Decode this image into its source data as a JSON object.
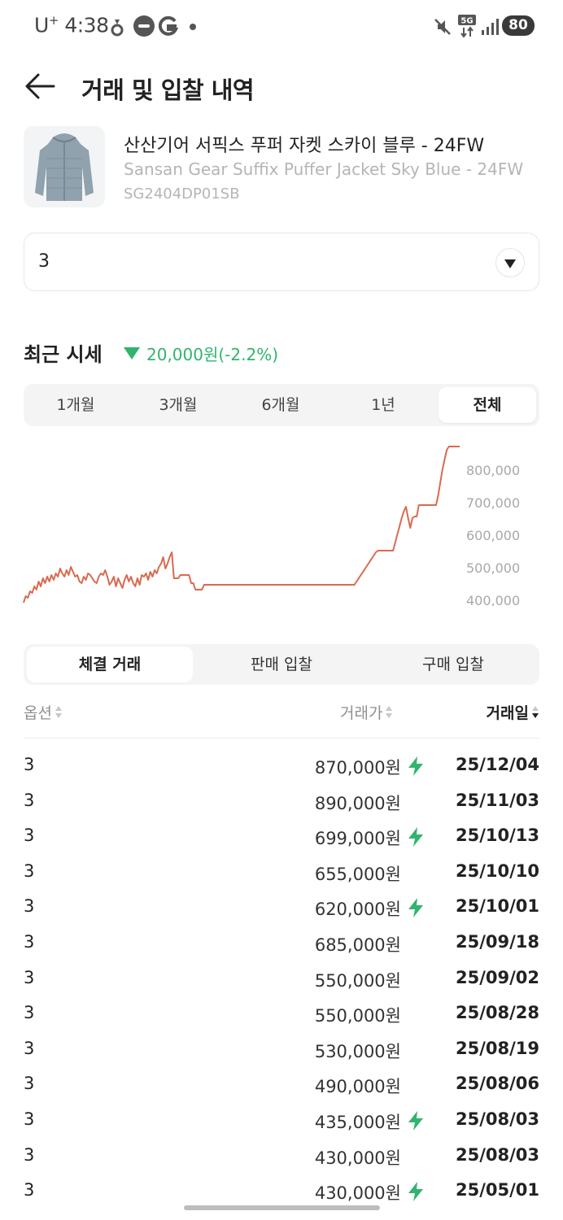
{
  "status_bar": {
    "carrier": "U",
    "carrier_plus": "+",
    "time": "4:38",
    "icons": [
      "carrot-icon",
      "yogiyo-icon",
      "g-app-icon",
      "notification-dot-icon",
      "mute-icon",
      "5g-icon",
      "signal-icon"
    ],
    "battery": "80"
  },
  "header": {
    "title": "거래 및 입찰 내역"
  },
  "product": {
    "name_ko": "산산기어 서픽스 푸퍼 자켓 스카이 블루 - 24FW",
    "name_en": "Sansan Gear Suffix Puffer Jacket Sky Blue - 24FW",
    "code": "SG2404DP01SB",
    "image_color": "#8fa2ad"
  },
  "size_select": {
    "value": "3"
  },
  "recent_price": {
    "label": "최근 시세",
    "change": "20,000원(-2.2%)",
    "direction": "down",
    "color": "#31b46e"
  },
  "period_tabs": [
    {
      "label": "1개월",
      "active": false
    },
    {
      "label": "3개월",
      "active": false
    },
    {
      "label": "6개월",
      "active": false
    },
    {
      "label": "1년",
      "active": false
    },
    {
      "label": "전체",
      "active": true
    }
  ],
  "chart_data": {
    "type": "line",
    "y_ticks": [
      "800,000",
      "700,000",
      "600,000",
      "500,000",
      "400,000"
    ],
    "y_tick_values": [
      800000,
      700000,
      600000,
      500000,
      400000
    ],
    "ylim": [
      380000,
      880000
    ],
    "line_color": "#d96a4f",
    "values": [
      390000,
      410000,
      405000,
      425000,
      420000,
      440000,
      430000,
      455000,
      440000,
      465000,
      450000,
      470000,
      455000,
      475000,
      460000,
      480000,
      470000,
      495000,
      480000,
      470000,
      490000,
      475000,
      500000,
      485000,
      470000,
      475000,
      455000,
      450000,
      470000,
      460000,
      480000,
      475000,
      465000,
      455000,
      450000,
      470000,
      480000,
      475000,
      490000,
      470000,
      445000,
      455000,
      470000,
      440000,
      465000,
      450000,
      435000,
      460000,
      475000,
      455000,
      470000,
      450000,
      440000,
      465000,
      445000,
      475000,
      470000,
      480000,
      460000,
      485000,
      470000,
      490000,
      480000,
      500000,
      510000,
      530000,
      495000,
      510000,
      530000,
      545000,
      465000,
      465000,
      465000,
      475000,
      475000,
      475000,
      475000,
      475000,
      450000,
      450000,
      430000,
      430000,
      430000,
      430000,
      445000,
      445000,
      445000,
      445000,
      445000,
      445000,
      445000,
      445000,
      445000,
      445000,
      445000,
      445000,
      445000,
      445000,
      445000,
      445000,
      445000,
      445000,
      445000,
      445000,
      445000,
      445000,
      445000,
      445000,
      445000,
      445000,
      445000,
      445000,
      445000,
      445000,
      445000,
      445000,
      445000,
      445000,
      445000,
      445000,
      445000,
      445000,
      445000,
      445000,
      445000,
      445000,
      445000,
      445000,
      445000,
      445000,
      445000,
      445000,
      445000,
      445000,
      445000,
      445000,
      445000,
      445000,
      445000,
      445000,
      445000,
      445000,
      445000,
      445000,
      445000,
      445000,
      445000,
      445000,
      445000,
      445000,
      445000,
      445000,
      445000,
      445000,
      445000,
      455000,
      465000,
      475000,
      485000,
      495000,
      505000,
      515000,
      525000,
      535000,
      545000,
      550000,
      550000,
      550000,
      550000,
      550000,
      550000,
      550000,
      550000,
      575000,
      600000,
      625000,
      650000,
      670000,
      685000,
      650000,
      620000,
      650000,
      655000,
      655000,
      690000,
      690000,
      690000,
      690000,
      690000,
      690000,
      690000,
      690000,
      690000,
      720000,
      760000,
      800000,
      830000,
      860000,
      870000,
      870000,
      870000,
      870000,
      870000,
      870000
    ]
  },
  "trade_tabs": [
    {
      "label": "체결 거래",
      "active": true
    },
    {
      "label": "판매 입찰",
      "active": false
    },
    {
      "label": "구매 입찰",
      "active": false
    }
  ],
  "table": {
    "columns": [
      {
        "label": "옵션",
        "sorted": false
      },
      {
        "label": "거래가",
        "sorted": false
      },
      {
        "label": "거래일",
        "sorted": true
      }
    ],
    "rows": [
      {
        "option": "3",
        "price": "870,000원",
        "fast": true,
        "date": "25/12/04"
      },
      {
        "option": "3",
        "price": "890,000원",
        "fast": false,
        "date": "25/11/03"
      },
      {
        "option": "3",
        "price": "699,000원",
        "fast": true,
        "date": "25/10/13"
      },
      {
        "option": "3",
        "price": "655,000원",
        "fast": false,
        "date": "25/10/10"
      },
      {
        "option": "3",
        "price": "620,000원",
        "fast": true,
        "date": "25/10/01"
      },
      {
        "option": "3",
        "price": "685,000원",
        "fast": false,
        "date": "25/09/18"
      },
      {
        "option": "3",
        "price": "550,000원",
        "fast": false,
        "date": "25/09/02"
      },
      {
        "option": "3",
        "price": "550,000원",
        "fast": false,
        "date": "25/08/28"
      },
      {
        "option": "3",
        "price": "530,000원",
        "fast": false,
        "date": "25/08/19"
      },
      {
        "option": "3",
        "price": "490,000원",
        "fast": false,
        "date": "25/08/06"
      },
      {
        "option": "3",
        "price": "435,000원",
        "fast": true,
        "date": "25/08/03"
      },
      {
        "option": "3",
        "price": "430,000원",
        "fast": false,
        "date": "25/08/03"
      },
      {
        "option": "3",
        "price": "430,000원",
        "fast": true,
        "date": "25/05/01"
      }
    ]
  }
}
